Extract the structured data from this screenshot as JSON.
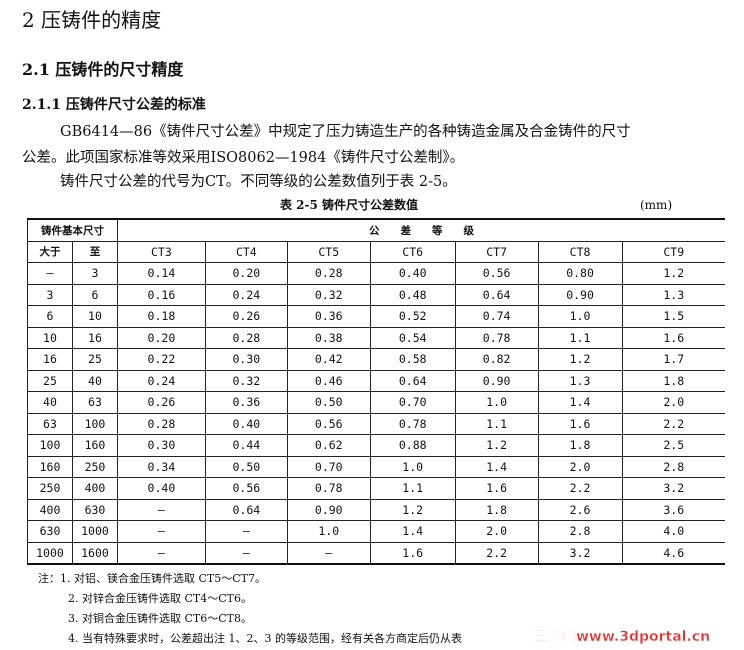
{
  "heading1": "2  压铸件的精度",
  "heading2": "2.1   压铸件的尺寸精度",
  "heading3": "2.1.1   压铸件尺寸公差的标准",
  "paragraphs": [
    "GB6414—86《铸件尺寸公差》中规定了压力铸造生产的各种铸造金属及合金铸件的尺寸",
    "公差。此项国家标准等效采用ISO8062—1984《铸件尺寸公差制》。",
    "铸件尺寸公差的代号为CT。不同等级的公差数值列于表 2-5。"
  ],
  "table": {
    "caption": "表 2-5   铸件尺寸公差数值",
    "unit": "(mm)",
    "group_header_size": "铸件基本尺寸",
    "group_header_grade": "公　　差　　等　　级",
    "columns": [
      "大于",
      "至",
      "CT3",
      "CT4",
      "CT5",
      "CT6",
      "CT7",
      "CT8",
      "CT9"
    ],
    "rows": [
      [
        "—",
        "3",
        "0.14",
        "0.20",
        "0.28",
        "0.40",
        "0.56",
        "0.80",
        "1.2"
      ],
      [
        "3",
        "6",
        "0.16",
        "0.24",
        "0.32",
        "0.48",
        "0.64",
        "0.90",
        "1.3"
      ],
      [
        "6",
        "10",
        "0.18",
        "0.26",
        "0.36",
        "0.52",
        "0.74",
        "1.0",
        "1.5"
      ],
      [
        "10",
        "16",
        "0.20",
        "0.28",
        "0.38",
        "0.54",
        "0.78",
        "1.1",
        "1.6"
      ],
      [
        "16",
        "25",
        "0.22",
        "0.30",
        "0.42",
        "0.58",
        "0.82",
        "1.2",
        "1.7"
      ],
      [
        "25",
        "40",
        "0.24",
        "0.32",
        "0.46",
        "0.64",
        "0.90",
        "1.3",
        "1.8"
      ],
      [
        "40",
        "63",
        "0.26",
        "0.36",
        "0.50",
        "0.70",
        "1.0",
        "1.4",
        "2.0"
      ],
      [
        "63",
        "100",
        "0.28",
        "0.40",
        "0.56",
        "0.78",
        "1.1",
        "1.6",
        "2.2"
      ],
      [
        "100",
        "160",
        "0.30",
        "0.44",
        "0.62",
        "0.88",
        "1.2",
        "1.8",
        "2.5"
      ],
      [
        "160",
        "250",
        "0.34",
        "0.50",
        "0.70",
        "1.0",
        "1.4",
        "2.0",
        "2.8"
      ],
      [
        "250",
        "400",
        "0.40",
        "0.56",
        "0.78",
        "1.1",
        "1.6",
        "2.2",
        "3.2"
      ],
      [
        "400",
        "630",
        "—",
        "0.64",
        "0.90",
        "1.2",
        "1.8",
        "2.6",
        "3.6"
      ],
      [
        "630",
        "1000",
        "—",
        "—",
        "1.0",
        "1.4",
        "2.0",
        "2.8",
        "4.0"
      ],
      [
        "1000",
        "1600",
        "—",
        "—",
        "—",
        "1.6",
        "2.2",
        "3.2",
        "4.6"
      ]
    ]
  },
  "notes": [
    "注：1. 对铝、镁合金压铸件选取 CT5～CT7。",
    "2. 对锌合金压铸件选取 CT4～CT6。",
    "3. 对铜合金压铸件选取 CT6～CT8。",
    "4. 当有特殊要求时，公差超出注 1、2、3 的等级范围，经有关各方商定后仍从表"
  ],
  "watermark": "三维网www.3dportal.cn"
}
